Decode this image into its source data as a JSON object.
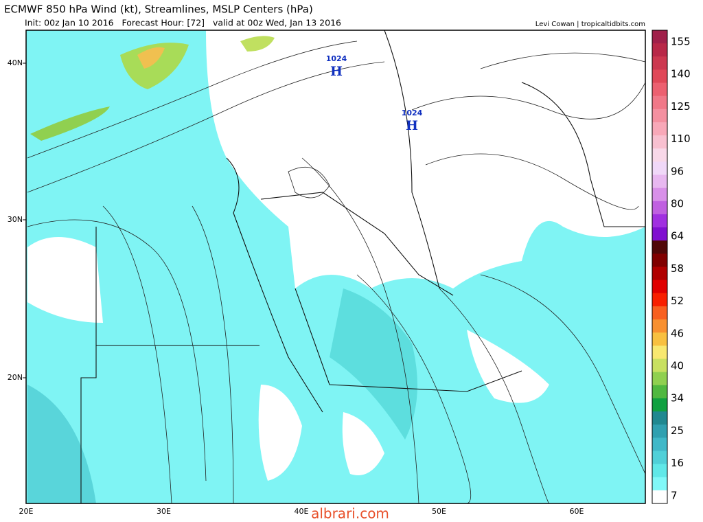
{
  "header": {
    "title": "ECMWF 850 hPa Wind (kt), Streamlines, MSLP Centers (hPa)",
    "subtitle": "Init: 00z Jan 10 2016   Forecast Hour: [72]   valid at 00z Wed, Jan 13 2016",
    "credit": "Levi Cowan | tropicaltidbits.com"
  },
  "map": {
    "latitude_labels": [
      "40N",
      "30N",
      "20N"
    ],
    "longitude_labels": [
      "20E",
      "30E",
      "40E",
      "50E",
      "60E"
    ],
    "pressure_centers": [
      {
        "value": "1024",
        "label": "H"
      },
      {
        "value": "1024",
        "label": "H"
      }
    ]
  },
  "colorbar": {
    "labels": [
      "155",
      "140",
      "125",
      "110",
      "96",
      "80",
      "64",
      "58",
      "52",
      "46",
      "40",
      "34",
      "25",
      "16",
      "7"
    ],
    "colors": [
      "#a0204a",
      "#b82848",
      "#cc3850",
      "#e04858",
      "#ec6070",
      "#f07888",
      "#f490a0",
      "#f8a8b8",
      "#f8c0d0",
      "#f8d8e8",
      "#f0d8f8",
      "#e8b8f0",
      "#d890e8",
      "#c060e0",
      "#a030e0",
      "#8010d0",
      "#500808",
      "#800000",
      "#b00000",
      "#e00000",
      "#f82000",
      "#f86020",
      "#f89030",
      "#f8c040",
      "#f8e870",
      "#c8e060",
      "#90d050",
      "#50b840",
      "#10a040",
      "#208890",
      "#30a0b0",
      "#40b8c8",
      "#50d0d8",
      "#60e8e8",
      "#80f8f8",
      "#ffffff"
    ]
  },
  "watermark": "albrari.com"
}
